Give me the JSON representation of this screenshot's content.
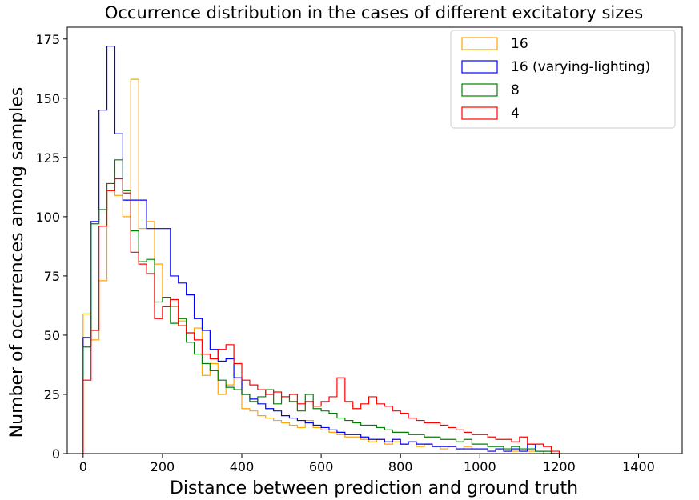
{
  "chart_data": {
    "type": "histogram",
    "title": "Occurrence distribution in the cases of different excitatory sizes",
    "xlabel": "Distance between prediction and ground truth",
    "ylabel": "Number of occurrences among samples",
    "xlim": [
      -40,
      1510
    ],
    "ylim": [
      0,
      180
    ],
    "xticks": [
      0,
      200,
      400,
      600,
      800,
      1000,
      1200,
      1400
    ],
    "yticks": [
      0,
      25,
      50,
      75,
      100,
      125,
      150,
      175
    ],
    "bin_width": 20,
    "bin_start": 0,
    "legend_position": "upper right",
    "series": [
      {
        "name": "16",
        "color": "#ffa500",
        "values": [
          59,
          48,
          73,
          111,
          109,
          100,
          158,
          95,
          98,
          80,
          66,
          62,
          56,
          51,
          53,
          33,
          38,
          25,
          29,
          32,
          19,
          18,
          16,
          15,
          14,
          13,
          12,
          11,
          14,
          11,
          10,
          9,
          8,
          7,
          7,
          6,
          5,
          6,
          4,
          5,
          4,
          5,
          3,
          4,
          3,
          2,
          3,
          2,
          3,
          2,
          2,
          1,
          2,
          1,
          1,
          1,
          1,
          1,
          0,
          0
        ]
      },
      {
        "name": "16 (varying-lighting)",
        "color": "#0000ff",
        "values": [
          49,
          98,
          145,
          172,
          135,
          107,
          107,
          107,
          95,
          95,
          95,
          75,
          72,
          67,
          57,
          52,
          44,
          39,
          40,
          32,
          25,
          23,
          21,
          19,
          18,
          16,
          15,
          14,
          13,
          12,
          11,
          10,
          9,
          8,
          8,
          7,
          6,
          6,
          5,
          6,
          4,
          5,
          4,
          4,
          3,
          3,
          3,
          2,
          2,
          2,
          2,
          1,
          2,
          1,
          2,
          1,
          4,
          1,
          1,
          0
        ]
      },
      {
        "name": "8",
        "color": "#008000",
        "values": [
          45,
          97,
          103,
          114,
          124,
          111,
          94,
          81,
          82,
          64,
          66,
          55,
          57,
          47,
          42,
          38,
          35,
          31,
          28,
          27,
          25,
          22,
          24,
          27,
          21,
          24,
          22,
          18,
          25,
          19,
          18,
          17,
          15,
          14,
          13,
          12,
          12,
          11,
          10,
          9,
          9,
          8,
          8,
          7,
          7,
          6,
          6,
          5,
          6,
          4,
          4,
          3,
          3,
          2,
          3,
          2,
          2,
          1,
          1,
          0
        ]
      },
      {
        "name": "4",
        "color": "#ff0000",
        "values": [
          31,
          52,
          96,
          111,
          116,
          110,
          85,
          80,
          76,
          57,
          62,
          65,
          54,
          51,
          48,
          42,
          40,
          44,
          46,
          38,
          31,
          29,
          27,
          25,
          26,
          24,
          25,
          21,
          22,
          20,
          22,
          24,
          32,
          22,
          19,
          21,
          24,
          21,
          20,
          18,
          17,
          15,
          14,
          13,
          13,
          12,
          11,
          10,
          9,
          8,
          8,
          7,
          6,
          6,
          5,
          7,
          4,
          4,
          3,
          1
        ]
      }
    ]
  }
}
